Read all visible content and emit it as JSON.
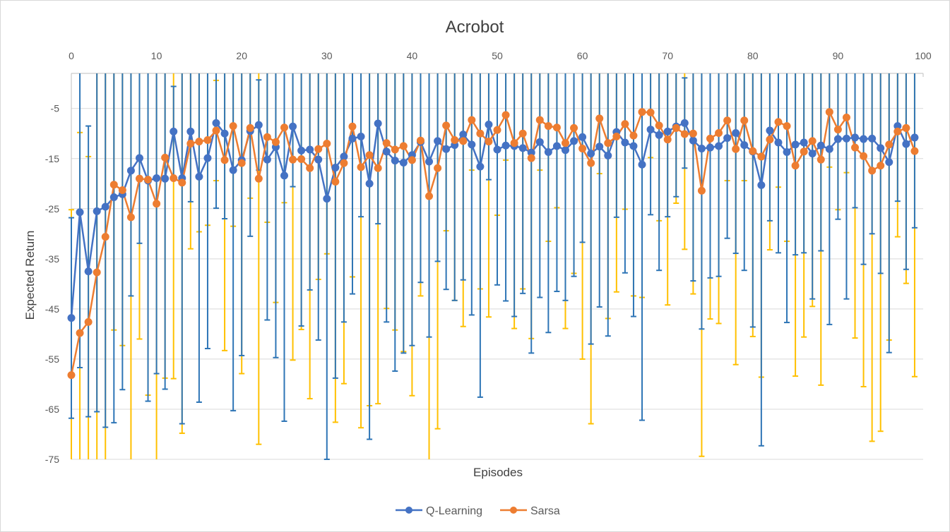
{
  "chart_data": {
    "type": "line",
    "title": "Acrobot",
    "xlabel": "Episodes",
    "ylabel": "Expected Return",
    "xlim": [
      0,
      100
    ],
    "ylim": [
      -75,
      2
    ],
    "x_ticks": [
      0,
      10,
      20,
      30,
      40,
      50,
      60,
      70,
      80,
      90,
      100
    ],
    "y_ticks": [
      -5,
      -15,
      -25,
      -35,
      -45,
      -55,
      -65,
      -75
    ],
    "x_axis_position": "top",
    "grid": "horizontal",
    "legend_position": "bottom-center",
    "error_bars": true,
    "series": [
      {
        "name": "Q-Learning",
        "color": "#4472C4",
        "error_color": "#2E75B6",
        "values": [
          -46.8,
          -25.7,
          -37.5,
          -25.5,
          -24.6,
          -22.7,
          -22.1,
          -17.4,
          -14.9,
          -19.4,
          -18.9,
          -19.0,
          -9.6,
          -18.9,
          -9.6,
          -18.6,
          -14.9,
          -7.9,
          -10.0,
          -17.3,
          -15.3,
          -9.5,
          -8.3,
          -15.2,
          -12.7,
          -18.4,
          -8.6,
          -13.4,
          -13.2,
          -15.2,
          -23.0,
          -16.8,
          -14.6,
          -11.0,
          -10.6,
          -20.0,
          -8.0,
          -13.6,
          -15.4,
          -15.8,
          -14.3,
          -11.7,
          -15.6,
          -11.5,
          -13.1,
          -12.3,
          -10.2,
          -12.2,
          -16.6,
          -8.2,
          -13.2,
          -12.4,
          -12.5,
          -12.9,
          -13.8,
          -11.7,
          -13.7,
          -12.5,
          -13.3,
          -11.5,
          -10.7,
          -14.0,
          -12.6,
          -14.4,
          -9.7,
          -11.8,
          -12.5,
          -16.2,
          -9.2,
          -10.3,
          -9.6,
          -8.6,
          -7.9,
          -11.4,
          -13.0,
          -12.8,
          -12.5,
          -10.9,
          -9.9,
          -12.3,
          -13.6,
          -20.3,
          -9.4,
          -11.8,
          -13.7,
          -12.2,
          -11.8,
          -14.0,
          -12.4,
          -13.1,
          -11.1,
          -11.0,
          -10.8,
          -11.1,
          -11.0,
          -12.9,
          -15.7,
          -8.5,
          -12.1,
          -10.8
        ],
        "errors": [
          20,
          31,
          29,
          40,
          44,
          45,
          39,
          25,
          17,
          44,
          39,
          42,
          9,
          49,
          14,
          45,
          38,
          17,
          17,
          48,
          39,
          21,
          9,
          32,
          42,
          49,
          12,
          35,
          28,
          36,
          52,
          42,
          33,
          31,
          16,
          51,
          20,
          34,
          42,
          38,
          38,
          28,
          35,
          24,
          28,
          31,
          29,
          34,
          46,
          11,
          27,
          31,
          34,
          29,
          40,
          31,
          36,
          29,
          30,
          27,
          21,
          38,
          32,
          36,
          17,
          26,
          34,
          51,
          17,
          27,
          17,
          14,
          9,
          28,
          36,
          26,
          26,
          20,
          24,
          25,
          35,
          52,
          18,
          22,
          34,
          22,
          22,
          29,
          21,
          35,
          16,
          32,
          14,
          25,
          19,
          25,
          38,
          15,
          25,
          18
        ]
      },
      {
        "name": "Sarsa",
        "color": "#ED7D31",
        "error_color": "#FFC000",
        "values": [
          -58.2,
          -49.8,
          -47.6,
          -37.7,
          -30.6,
          -20.2,
          -21.3,
          -26.7,
          -19.0,
          -19.2,
          -24.0,
          -14.8,
          -18.9,
          -19.8,
          -12.0,
          -11.6,
          -11.3,
          -9.4,
          -15.3,
          -8.5,
          -15.9,
          -8.9,
          -19.0,
          -10.7,
          -11.7,
          -8.8,
          -15.2,
          -15.1,
          -16.9,
          -13.1,
          -12.0,
          -19.6,
          -15.9,
          -8.6,
          -16.7,
          -14.3,
          -16.9,
          -11.9,
          -13.2,
          -12.5,
          -15.3,
          -11.4,
          -22.5,
          -16.9,
          -8.4,
          -11.3,
          -11.5,
          -7.3,
          -10.0,
          -11.6,
          -9.3,
          -6.3,
          -11.9,
          -10.0,
          -14.9,
          -7.3,
          -8.5,
          -8.8,
          -11.9,
          -8.9,
          -13.0,
          -15.9,
          -7.0,
          -11.9,
          -10.6,
          -8.1,
          -10.4,
          -5.7,
          -5.8,
          -8.4,
          -11.2,
          -8.9,
          -10.1,
          -10.0,
          -21.4,
          -11.0,
          -9.9,
          -7.4,
          -13.1,
          -7.4,
          -13.5,
          -14.6,
          -11.2,
          -7.7,
          -8.5,
          -16.4,
          -13.6,
          -11.5,
          -15.2,
          -5.7,
          -9.2,
          -6.8,
          -12.8,
          -14.5,
          -17.4,
          -16.4,
          -12.2,
          -9.6,
          -8.9,
          -13.5
        ],
        "errors": [
          33,
          40,
          33,
          55,
          60,
          29,
          31,
          52,
          32,
          43,
          52,
          44,
          40,
          50,
          21,
          18,
          17,
          10,
          38,
          20,
          42,
          14,
          53,
          17,
          32,
          15,
          40,
          34,
          46,
          26,
          22,
          48,
          44,
          30,
          52,
          50,
          47,
          33,
          36,
          41,
          47,
          31,
          55,
          52,
          21,
          32,
          37,
          10,
          31,
          35,
          17,
          9,
          37,
          31,
          36,
          10,
          23,
          16,
          37,
          29,
          42,
          52,
          11,
          35,
          31,
          17,
          32,
          37,
          9,
          19,
          33,
          15,
          23,
          32,
          53,
          36,
          38,
          12,
          43,
          12,
          37,
          44,
          22,
          13,
          23,
          42,
          37,
          33,
          45,
          11,
          16,
          11,
          38,
          46,
          54,
          53,
          39,
          21,
          31,
          45
        ]
      }
    ]
  }
}
